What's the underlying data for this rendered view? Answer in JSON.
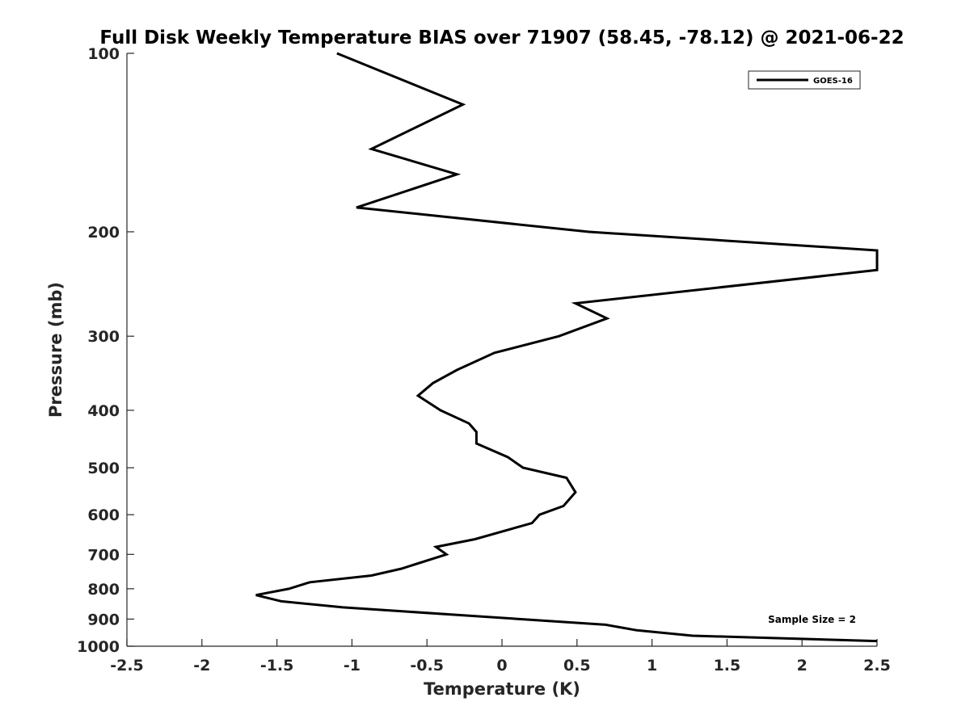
{
  "chart_data": {
    "type": "line",
    "title": "Full Disk Weekly Temperature BIAS over 71907 (58.45, -78.12) @ 2021-06-22",
    "xlabel": "Temperature (K)",
    "ylabel": "Pressure (mb)",
    "xlim": [
      -2.5,
      2.5
    ],
    "ylim": [
      1000,
      100
    ],
    "y_scale": "log",
    "y_reversed": true,
    "grid": false,
    "x_ticks": [
      -2.5,
      -2,
      -1.5,
      -1,
      -0.5,
      0,
      0.5,
      1,
      1.5,
      2,
      2.5
    ],
    "x_tick_labels": [
      "-2.5",
      "-2",
      "-1.5",
      "-1",
      "-0.5",
      "0",
      "0.5",
      "1",
      "1.5",
      "2",
      "2.5"
    ],
    "y_ticks": [
      100,
      200,
      300,
      400,
      500,
      600,
      700,
      800,
      900,
      1000
    ],
    "y_tick_labels": [
      "100",
      "200",
      "300",
      "400",
      "500",
      "600",
      "700",
      "800",
      "900",
      "1000"
    ],
    "legend": {
      "position": "top-right",
      "entries": [
        "GOES-16"
      ]
    },
    "annotation": "Sample Size = 2",
    "series": [
      {
        "name": "GOES-16",
        "color": "#000000",
        "points": [
          {
            "x": -1.1,
            "p": 100
          },
          {
            "x": -0.26,
            "p": 122
          },
          {
            "x": -0.87,
            "p": 145
          },
          {
            "x": -0.3,
            "p": 160
          },
          {
            "x": -0.97,
            "p": 182
          },
          {
            "x": 0.58,
            "p": 200
          },
          {
            "x": 2.5,
            "p": 215
          },
          {
            "x": 2.5,
            "p": 232
          },
          {
            "x": 0.49,
            "p": 264
          },
          {
            "x": 0.7,
            "p": 280
          },
          {
            "x": 0.38,
            "p": 300
          },
          {
            "x": -0.05,
            "p": 320
          },
          {
            "x": -0.3,
            "p": 342
          },
          {
            "x": -0.46,
            "p": 360
          },
          {
            "x": -0.56,
            "p": 378
          },
          {
            "x": -0.41,
            "p": 400
          },
          {
            "x": -0.22,
            "p": 421
          },
          {
            "x": -0.17,
            "p": 435
          },
          {
            "x": -0.17,
            "p": 455
          },
          {
            "x": 0.04,
            "p": 480
          },
          {
            "x": 0.14,
            "p": 500
          },
          {
            "x": 0.43,
            "p": 520
          },
          {
            "x": 0.49,
            "p": 550
          },
          {
            "x": 0.41,
            "p": 580
          },
          {
            "x": 0.25,
            "p": 600
          },
          {
            "x": 0.2,
            "p": 620
          },
          {
            "x": -0.18,
            "p": 660
          },
          {
            "x": -0.44,
            "p": 680
          },
          {
            "x": -0.37,
            "p": 700
          },
          {
            "x": -0.67,
            "p": 740
          },
          {
            "x": -0.87,
            "p": 760
          },
          {
            "x": -1.28,
            "p": 780
          },
          {
            "x": -1.42,
            "p": 800
          },
          {
            "x": -1.64,
            "p": 820
          },
          {
            "x": -1.47,
            "p": 840
          },
          {
            "x": -1.06,
            "p": 860
          },
          {
            "x": 0.69,
            "p": 920
          },
          {
            "x": 0.9,
            "p": 940
          },
          {
            "x": 1.27,
            "p": 960
          },
          {
            "x": 2.5,
            "p": 980
          }
        ]
      }
    ]
  }
}
